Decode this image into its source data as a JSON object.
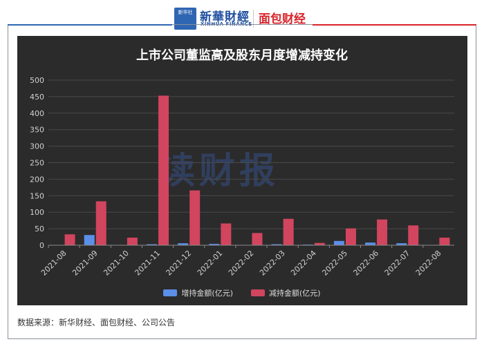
{
  "header": {
    "logo_text": "新华社",
    "brand_cn": "新華財經",
    "brand_en": "XINHUA FINANCE",
    "brand_right": "面包财经"
  },
  "watermark": "读财报",
  "source": "数据来源：新华财经、面包财经、公司公告",
  "colors": {
    "increase": "#5b8fe8",
    "decrease": "#d1455e",
    "panel": "#2b2b2b"
  },
  "chart_data": {
    "type": "bar",
    "title": "上市公司董监高及股东月度增减持变化",
    "categories": [
      "2021-08",
      "2021-09",
      "2021-10",
      "2021-11",
      "2021-12",
      "2022-01",
      "2022-02",
      "2022-03",
      "2022-04",
      "2022-05",
      "2022-06",
      "2022-07",
      "2022-08"
    ],
    "series": [
      {
        "name": "增持金额(亿元)",
        "values": [
          0,
          31,
          0,
          3,
          6,
          4,
          0,
          3,
          2,
          13,
          8,
          6,
          1
        ]
      },
      {
        "name": "减持金额(亿元)",
        "values": [
          33,
          133,
          23,
          453,
          166,
          66,
          37,
          80,
          7,
          51,
          78,
          60,
          23
        ]
      }
    ],
    "yticks": [
      0,
      50,
      100,
      150,
      200,
      250,
      300,
      350,
      400,
      450,
      500
    ],
    "ylim": [
      0,
      500
    ],
    "grid": true,
    "legend_position": "bottom"
  }
}
